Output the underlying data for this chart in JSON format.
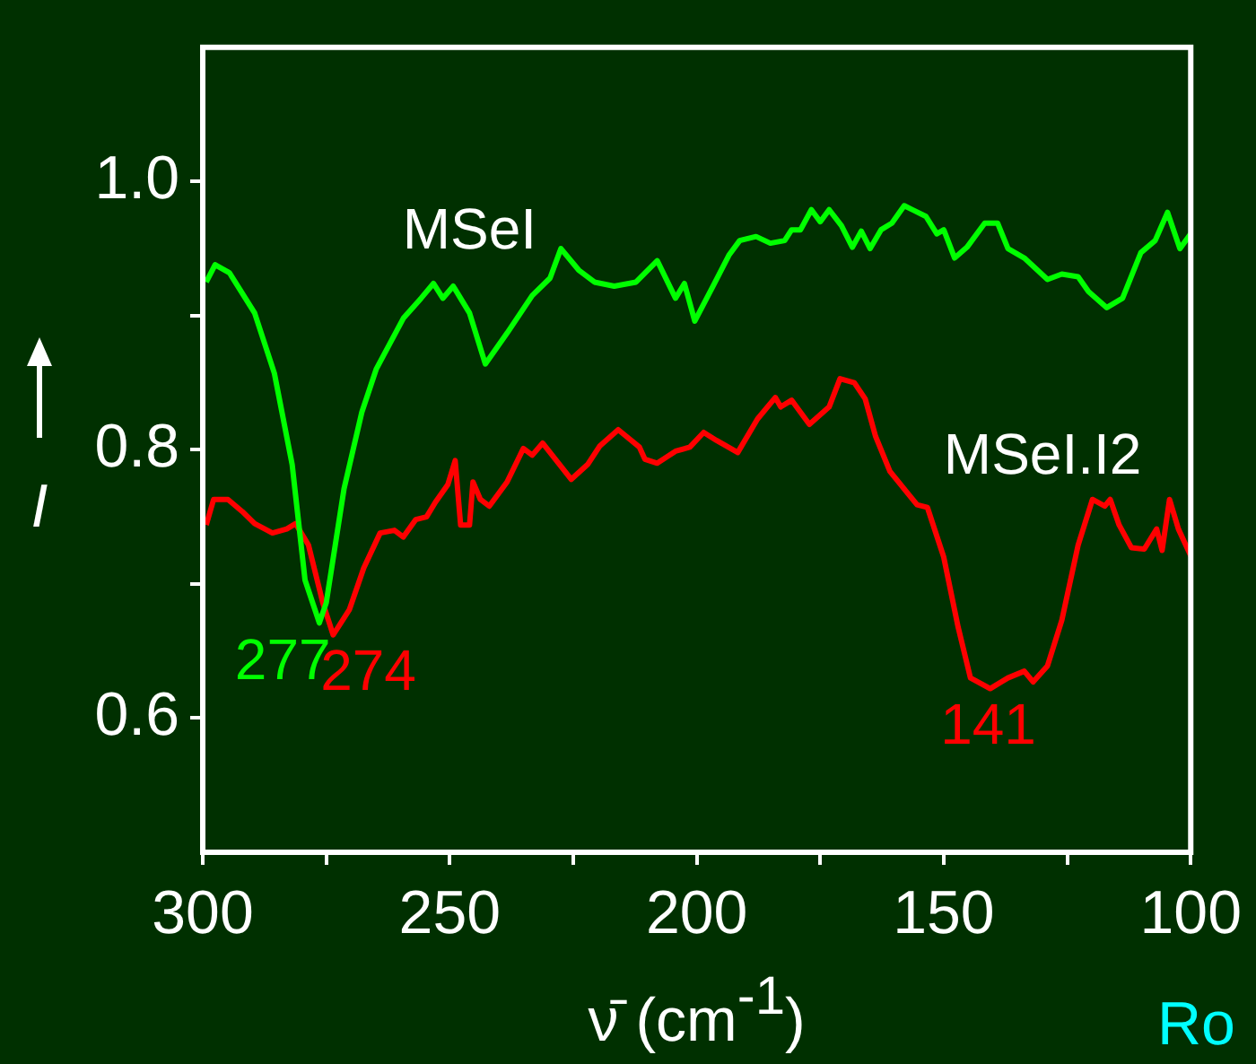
{
  "chart_data": {
    "type": "line",
    "xlabel": "ν̄ (cm$^{-1}$)",
    "ylabel": "I",
    "xlim": [
      300,
      100
    ],
    "xticks": [
      300,
      {
        "value": 275,
        "label": null
      },
      250,
      {
        "value": 225,
        "label": null
      },
      200,
      {
        "value": 175,
        "label": null
      },
      150,
      {
        "value": 125,
        "label": null
      },
      100
    ],
    "ylim": [
      0.5,
      1.1
    ],
    "yticks": [
      {
        "value": 0.6,
        "label": "0.6"
      },
      {
        "value": 0.7,
        "label": null
      },
      {
        "value": 0.8,
        "label": "0.8"
      },
      {
        "value": 0.9,
        "label": null
      },
      {
        "value": 1,
        "label": "1.0"
      }
    ],
    "grid": false,
    "legend": false,
    "marker": "none",
    "line_style": "solid",
    "series": [
      {
        "name": "MSeI",
        "color": "#00ff00",
        "x": [
          299.3,
          297.5,
          294.6,
          289.5,
          285.5,
          281.9,
          279.3,
          276.4,
          275.0,
          271.4,
          267.8,
          264.9,
          259.4,
          255.8,
          253.3,
          251.4,
          249.3,
          246.0,
          242.8,
          238.4,
          233.3,
          229.7,
          227.5,
          223.9,
          220.7,
          216.7,
          212.3,
          208.0,
          204.3,
          202.5,
          200.4,
          196.7,
          193.5,
          191.3,
          188.0,
          185.1,
          182.2,
          180.8,
          179.0,
          176.8,
          175.0,
          173.2,
          170.7,
          168.5,
          166.7,
          164.9,
          162.7,
          160.5,
          158.0,
          153.6,
          151.4,
          150.0,
          147.8,
          145.3,
          141.7,
          139.1,
          137.0,
          133.7,
          129.0,
          126.1,
          122.8,
          120.7,
          117.0,
          113.8,
          110.1,
          107.2,
          104.7,
          102.2,
          100.0
        ],
        "values": [
          0.925,
          0.938,
          0.932,
          0.902,
          0.857,
          0.789,
          0.703,
          0.671,
          0.686,
          0.771,
          0.828,
          0.86,
          0.898,
          0.913,
          0.924,
          0.913,
          0.922,
          0.902,
          0.864,
          0.887,
          0.915,
          0.928,
          0.95,
          0.934,
          0.925,
          0.922,
          0.925,
          0.941,
          0.913,
          0.924,
          0.896,
          0.922,
          0.945,
          0.956,
          0.959,
          0.954,
          0.956,
          0.964,
          0.964,
          0.979,
          0.97,
          0.979,
          0.967,
          0.951,
          0.963,
          0.95,
          0.964,
          0.969,
          0.982,
          0.974,
          0.961,
          0.964,
          0.943,
          0.951,
          0.969,
          0.969,
          0.95,
          0.943,
          0.927,
          0.931,
          0.929,
          0.918,
          0.906,
          0.913,
          0.947,
          0.956,
          0.977,
          0.95,
          0.961
        ]
      },
      {
        "name": "MSeI.I2",
        "color": "#ff0000",
        "x": [
          299.3,
          297.8,
          294.9,
          292.0,
          289.5,
          285.9,
          283.0,
          281.2,
          278.6,
          275.7,
          273.6,
          270.3,
          267.4,
          264.1,
          261.2,
          259.4,
          256.9,
          254.7,
          252.9,
          250.4,
          248.9,
          247.8,
          246.0,
          245.3,
          243.8,
          242.0,
          238.4,
          235.1,
          233.3,
          231.2,
          225.4,
          222.1,
          219.6,
          215.9,
          211.6,
          210.5,
          208.0,
          204.3,
          201.4,
          198.6,
          196.0,
          191.7,
          187.7,
          184.1,
          183.0,
          180.8,
          177.2,
          173.2,
          171.0,
          168.1,
          165.9,
          163.8,
          160.9,
          155.4,
          153.3,
          150.0,
          147.1,
          144.6,
          140.6,
          137.0,
          133.7,
          131.9,
          129.0,
          126.1,
          122.8,
          119.9,
          117.4,
          116.3,
          114.5,
          112.0,
          109.4,
          106.9,
          105.8,
          104.3,
          102.5,
          100.0
        ],
        "values": [
          0.744,
          0.763,
          0.763,
          0.754,
          0.745,
          0.738,
          0.741,
          0.745,
          0.729,
          0.686,
          0.662,
          0.681,
          0.712,
          0.738,
          0.74,
          0.735,
          0.748,
          0.75,
          0.761,
          0.774,
          0.792,
          0.744,
          0.744,
          0.776,
          0.763,
          0.758,
          0.776,
          0.801,
          0.796,
          0.805,
          0.778,
          0.789,
          0.803,
          0.815,
          0.802,
          0.793,
          0.79,
          0.799,
          0.802,
          0.813,
          0.807,
          0.798,
          0.823,
          0.839,
          0.832,
          0.837,
          0.819,
          0.832,
          0.853,
          0.85,
          0.838,
          0.81,
          0.784,
          0.759,
          0.757,
          0.72,
          0.668,
          0.63,
          0.622,
          0.63,
          0.635,
          0.627,
          0.639,
          0.673,
          0.729,
          0.763,
          0.758,
          0.763,
          0.744,
          0.727,
          0.726,
          0.741,
          0.725,
          0.763,
          0.741,
          0.721
        ]
      }
    ],
    "annotations": [
      {
        "text": "277",
        "x": 277,
        "y": 0.67
      },
      {
        "text": "274",
        "x": 274,
        "y": 0.662
      },
      {
        "text": "141",
        "x": 141,
        "y": 0.622
      },
      "Ro"
    ]
  }
}
